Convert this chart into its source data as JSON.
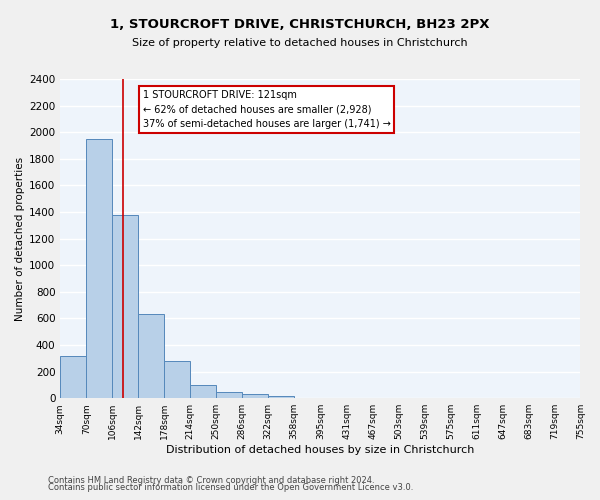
{
  "title": "1, STOURCROFT DRIVE, CHRISTCHURCH, BH23 2PX",
  "subtitle": "Size of property relative to detached houses in Christchurch",
  "xlabel": "Distribution of detached houses by size in Christchurch",
  "ylabel": "Number of detached properties",
  "footnote1": "Contains HM Land Registry data © Crown copyright and database right 2024.",
  "footnote2": "Contains public sector information licensed under the Open Government Licence v3.0.",
  "bar_edges": [
    34,
    70,
    106,
    142,
    178,
    214,
    250,
    286,
    322,
    358,
    395,
    431,
    467,
    503,
    539,
    575,
    611,
    647,
    683,
    719,
    755
  ],
  "bar_heights": [
    320,
    1950,
    1380,
    630,
    280,
    100,
    45,
    30,
    20,
    0,
    0,
    0,
    0,
    0,
    0,
    0,
    0,
    0,
    0,
    0
  ],
  "bar_color": "#b8d0e8",
  "bar_edge_color": "#5588bb",
  "background_color": "#eef4fb",
  "grid_color": "#ffffff",
  "annotation_line1": "1 STOURCROFT DRIVE: 121sqm",
  "annotation_line2": "← 62% of detached houses are smaller (2,928)",
  "annotation_line3": "37% of semi-detached houses are larger (1,741) →",
  "annotation_box_edge": "#cc0000",
  "vline_x": 121,
  "vline_color": "#cc0000",
  "ylim": [
    0,
    2400
  ],
  "xlim": [
    34,
    755
  ],
  "yticks": [
    0,
    200,
    400,
    600,
    800,
    1000,
    1200,
    1400,
    1600,
    1800,
    2000,
    2200,
    2400
  ],
  "tick_labels": [
    "34sqm",
    "70sqm",
    "106sqm",
    "142sqm",
    "178sqm",
    "214sqm",
    "250sqm",
    "286sqm",
    "322sqm",
    "358sqm",
    "395sqm",
    "431sqm",
    "467sqm",
    "503sqm",
    "539sqm",
    "575sqm",
    "611sqm",
    "647sqm",
    "683sqm",
    "719sqm",
    "755sqm"
  ],
  "tick_positions": [
    34,
    70,
    106,
    142,
    178,
    214,
    250,
    286,
    322,
    358,
    395,
    431,
    467,
    503,
    539,
    575,
    611,
    647,
    683,
    719,
    755
  ],
  "fig_width": 6.0,
  "fig_height": 5.0,
  "dpi": 100
}
